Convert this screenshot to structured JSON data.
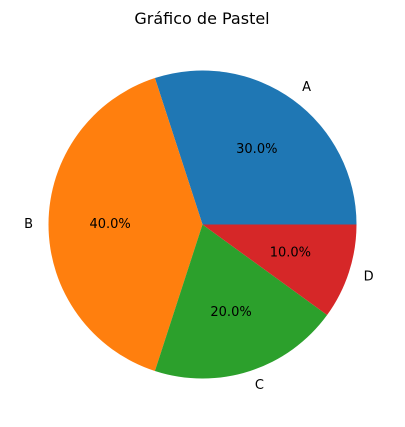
{
  "chart_data": {
    "type": "pie",
    "title": "Gráfico de Pastel",
    "categories": [
      "A",
      "B",
      "C",
      "D"
    ],
    "values": [
      30,
      40,
      20,
      10
    ],
    "percent_labels": [
      "30.0%",
      "40.0%",
      "20.0%",
      "10.0%"
    ],
    "colors": [
      "#1f77b4",
      "#ff7f0e",
      "#2ca02c",
      "#d62728"
    ],
    "start_angle_deg": 0,
    "direction": "counterclockwise",
    "legend": "none"
  }
}
